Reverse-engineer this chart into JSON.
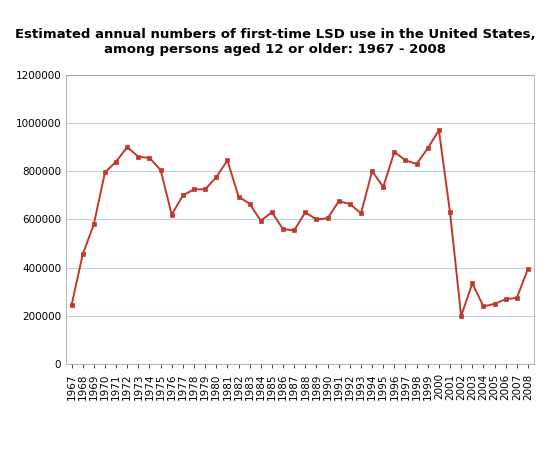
{
  "title": "Estimated annual numbers of first-time LSD use in the United States,\namong persons aged 12 or older: 1967 - 2008",
  "years": [
    1967,
    1968,
    1969,
    1970,
    1971,
    1972,
    1973,
    1974,
    1975,
    1976,
    1977,
    1978,
    1979,
    1980,
    1981,
    1982,
    1983,
    1984,
    1985,
    1986,
    1987,
    1988,
    1989,
    1990,
    1991,
    1992,
    1993,
    1994,
    1995,
    1996,
    1997,
    1998,
    1999,
    2000,
    2001,
    2002,
    2003,
    2004,
    2005,
    2006,
    2007,
    2008
  ],
  "values": [
    245000,
    455000,
    580000,
    795000,
    840000,
    900000,
    860000,
    855000,
    805000,
    620000,
    700000,
    725000,
    725000,
    775000,
    845000,
    695000,
    665000,
    595000,
    630000,
    560000,
    555000,
    630000,
    600000,
    605000,
    675000,
    665000,
    625000,
    800000,
    735000,
    880000,
    845000,
    830000,
    895000,
    970000,
    630000,
    200000,
    335000,
    240000,
    250000,
    270000,
    275000,
    395000
  ],
  "line_color": "#c0392b",
  "marker": "s",
  "marker_size": 3.5,
  "ylim": [
    0,
    1200000
  ],
  "yticks": [
    0,
    200000,
    400000,
    600000,
    800000,
    1000000,
    1200000
  ],
  "grid_color": "#b8d4e0",
  "bg_color": "#ffffff",
  "plot_bg_color": "#ffffff",
  "title_fontsize": 9.5,
  "tick_fontsize": 7.5
}
